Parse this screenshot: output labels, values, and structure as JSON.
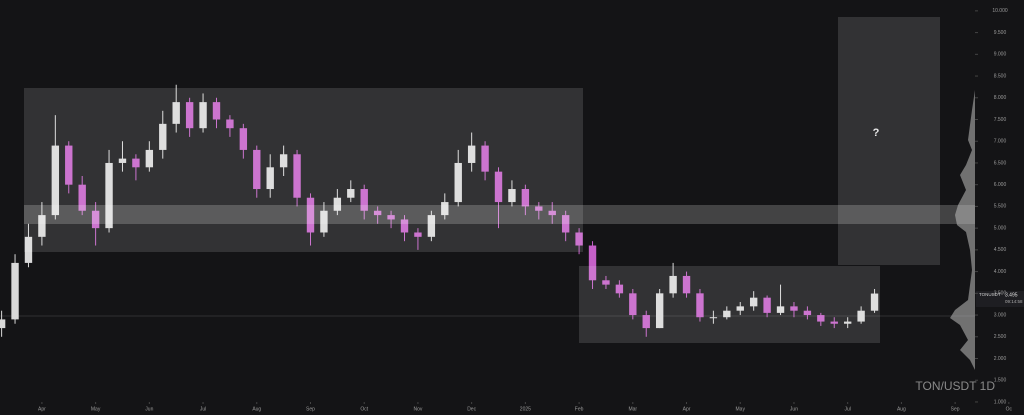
{
  "chart_data": {
    "type": "candlestick",
    "watermark": "TON/USDT 1D",
    "annotation": "?",
    "symbol_tag": "TONUSDT",
    "last_price": 3.495,
    "countdown": "09:14:58",
    "up_color": "#d9d9d9",
    "down_color": "#c560c8",
    "x": [
      -0.75,
      -0.5,
      -0.25,
      0,
      0.25,
      0.5,
      0.75,
      1,
      1.25,
      1.5,
      1.75,
      2,
      2.25,
      2.5,
      2.75,
      3,
      3.25,
      3.5,
      3.75,
      4,
      4.25,
      4.5,
      4.75,
      5,
      5.25,
      5.5,
      5.75,
      6,
      6.25,
      6.5,
      6.75,
      7,
      7.25,
      7.5,
      7.75,
      8,
      8.25,
      8.5,
      8.75,
      9,
      9.25,
      9.5,
      9.75,
      10,
      10.25,
      10.5,
      10.75,
      11,
      11.25,
      11.5,
      11.75,
      12,
      12.25,
      12.5,
      12.75,
      13,
      13.25,
      13.5,
      13.75,
      14,
      14.25,
      14.5,
      14.75,
      15,
      15.25,
      15.5
    ],
    "open": [
      2.7,
      2.9,
      4.2,
      4.8,
      5.3,
      6.9,
      6.0,
      5.4,
      5.0,
      6.5,
      6.6,
      6.4,
      6.8,
      7.4,
      7.9,
      7.3,
      7.9,
      7.5,
      7.3,
      6.8,
      5.9,
      6.4,
      6.7,
      5.7,
      4.9,
      5.4,
      5.7,
      5.9,
      5.4,
      5.3,
      5.2,
      4.9,
      4.8,
      5.3,
      5.6,
      6.5,
      6.9,
      6.3,
      5.6,
      5.9,
      5.5,
      5.4,
      5.3,
      4.9,
      4.6,
      3.8,
      3.7,
      3.5,
      3.0,
      2.7,
      3.5,
      3.9,
      3.5,
      2.95,
      2.95,
      3.1,
      3.2,
      3.4,
      3.05,
      3.2,
      3.1,
      3.0,
      2.85,
      2.8,
      2.85,
      3.1
    ],
    "high": [
      3.1,
      4.4,
      5.1,
      5.6,
      7.6,
      7.0,
      6.2,
      5.6,
      6.8,
      7.0,
      6.7,
      7.0,
      7.7,
      8.3,
      8.0,
      8.1,
      8.0,
      7.6,
      7.4,
      6.9,
      6.7,
      6.9,
      6.8,
      5.8,
      5.6,
      5.9,
      6.1,
      6.0,
      5.5,
      5.4,
      5.3,
      5.0,
      5.4,
      5.8,
      6.8,
      7.2,
      7.0,
      6.4,
      6.1,
      6.0,
      5.6,
      5.6,
      5.4,
      5.0,
      4.7,
      3.9,
      3.8,
      3.6,
      3.1,
      3.6,
      4.2,
      4.0,
      3.6,
      3.1,
      3.2,
      3.3,
      3.55,
      3.45,
      3.7,
      3.3,
      3.2,
      3.05,
      2.95,
      2.95,
      3.2,
      3.6
    ],
    "low": [
      2.5,
      2.8,
      4.1,
      4.6,
      5.2,
      5.8,
      5.3,
      4.6,
      4.9,
      6.3,
      6.1,
      6.3,
      6.6,
      7.2,
      7.1,
      7.2,
      7.3,
      7.1,
      6.6,
      5.7,
      5.7,
      6.2,
      5.5,
      4.6,
      4.8,
      5.3,
      5.6,
      5.2,
      5.1,
      5.0,
      4.7,
      4.5,
      4.7,
      5.2,
      5.5,
      6.3,
      6.1,
      5.0,
      5.5,
      5.3,
      5.2,
      5.1,
      4.7,
      4.4,
      3.6,
      3.6,
      3.4,
      2.9,
      2.5,
      2.7,
      3.4,
      3.4,
      2.85,
      2.8,
      2.9,
      3.0,
      3.1,
      2.95,
      3.0,
      2.95,
      2.9,
      2.75,
      2.7,
      2.7,
      2.8,
      3.05
    ],
    "close": [
      2.9,
      4.2,
      4.8,
      5.3,
      6.9,
      6.0,
      5.4,
      5.0,
      6.5,
      6.6,
      6.4,
      6.8,
      7.4,
      7.9,
      7.3,
      7.9,
      7.5,
      7.3,
      6.8,
      5.9,
      6.4,
      6.7,
      5.7,
      4.9,
      5.4,
      5.7,
      5.9,
      5.4,
      5.3,
      5.2,
      4.9,
      4.8,
      5.3,
      5.6,
      6.5,
      6.9,
      6.3,
      5.6,
      5.9,
      5.5,
      5.4,
      5.3,
      4.9,
      4.6,
      3.8,
      3.7,
      3.5,
      3.0,
      2.7,
      3.5,
      3.9,
      3.5,
      2.95,
      2.95,
      3.1,
      3.2,
      3.4,
      3.05,
      3.2,
      3.1,
      3.0,
      2.85,
      2.8,
      2.85,
      3.1,
      3.495
    ],
    "xlim": [
      -0.78,
      17.37
    ],
    "xticks": [
      {
        "value": 0,
        "label": "Apr"
      },
      {
        "value": 1,
        "label": "May"
      },
      {
        "value": 2,
        "label": "Jun"
      },
      {
        "value": 3,
        "label": "Jul"
      },
      {
        "value": 4,
        "label": "Aug"
      },
      {
        "value": 5,
        "label": "Sep"
      },
      {
        "value": 6,
        "label": "Oct"
      },
      {
        "value": 7,
        "label": "Nov"
      },
      {
        "value": 8,
        "label": "Dec"
      },
      {
        "value": 9,
        "label": "2025"
      },
      {
        "value": 10,
        "label": "Feb"
      },
      {
        "value": 11,
        "label": "Mar"
      },
      {
        "value": 12,
        "label": "Apr"
      },
      {
        "value": 13,
        "label": "May"
      },
      {
        "value": 14,
        "label": "Jun"
      },
      {
        "value": 15,
        "label": "Jul"
      },
      {
        "value": 16,
        "label": "Aug"
      },
      {
        "value": 17,
        "label": "Sep"
      },
      {
        "value": 18,
        "label": "Oc"
      }
    ],
    "ylim": [
      0.7,
      10.25
    ],
    "yticks": [
      {
        "value": 1,
        "label": "1.000"
      },
      {
        "value": 1.5,
        "label": "1.500"
      },
      {
        "value": 2,
        "label": "2.000"
      },
      {
        "value": 2.5,
        "label": "2.500"
      },
      {
        "value": 3,
        "label": "3.000"
      },
      {
        "value": 3.5,
        "label": "3.500"
      },
      {
        "value": 4,
        "label": "4.000"
      },
      {
        "value": 4.5,
        "label": "4.500"
      },
      {
        "value": 5,
        "label": "5.000"
      },
      {
        "value": 5.5,
        "label": "5.500"
      },
      {
        "value": 6,
        "label": "6.000"
      },
      {
        "value": 6.5,
        "label": "6.500"
      },
      {
        "value": 7,
        "label": "7.000"
      },
      {
        "value": 7.5,
        "label": "7.500"
      },
      {
        "value": 8,
        "label": "8.000"
      },
      {
        "value": 8.5,
        "label": "8.500"
      },
      {
        "value": 9,
        "label": "9.000"
      },
      {
        "value": 9.5,
        "label": "9.500"
      },
      {
        "value": 10,
        "label": "10.000"
      }
    ]
  }
}
